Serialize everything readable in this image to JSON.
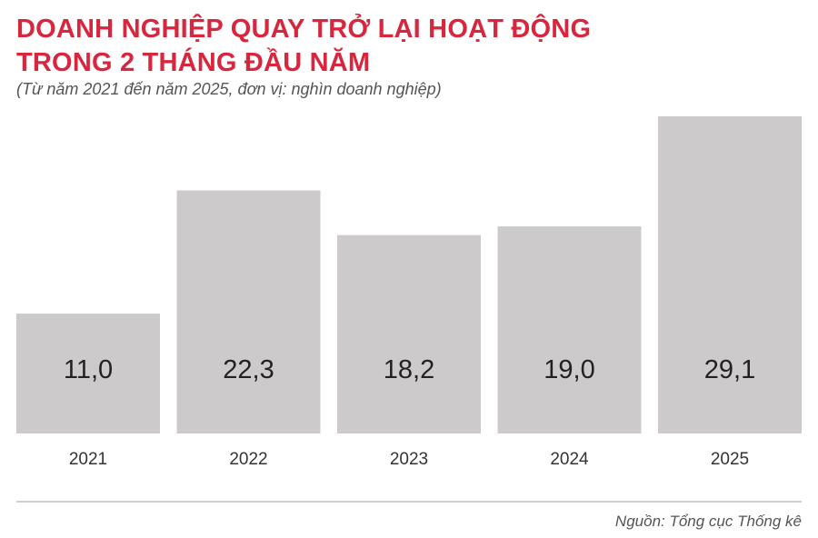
{
  "header": {
    "title_line1": "DOANH NGHIỆP QUAY TRỞ LẠI HOẠT ĐỘNG",
    "title_line2": "TRONG 2 THÁNG ĐẦU NĂM",
    "subtitle": "(Từ năm 2021 đến năm 2025, đơn vị: nghìn doanh nghiệp)"
  },
  "chart_data": {
    "type": "bar",
    "categories": [
      "2021",
      "2022",
      "2023",
      "2024",
      "2025"
    ],
    "values": [
      11.0,
      22.3,
      18.2,
      19.0,
      29.1
    ],
    "value_labels": [
      "11,0",
      "22,3",
      "18,2",
      "19,0",
      "29,1"
    ],
    "title": "DOANH NGHIỆP QUAY TRỞ LẠI HOẠT ĐỘNG TRONG 2 THÁNG ĐẦU NĂM",
    "subtitle": "(Từ năm 2021 đến năm 2025, đơn vị: nghìn doanh nghiệp)",
    "xlabel": "",
    "ylabel": "",
    "ylim": [
      0,
      29.1
    ],
    "grid": false,
    "legend": "none",
    "bar_color": "#cccacb"
  },
  "footer": {
    "source": "Nguồn: Tổng cục Thống kê"
  }
}
